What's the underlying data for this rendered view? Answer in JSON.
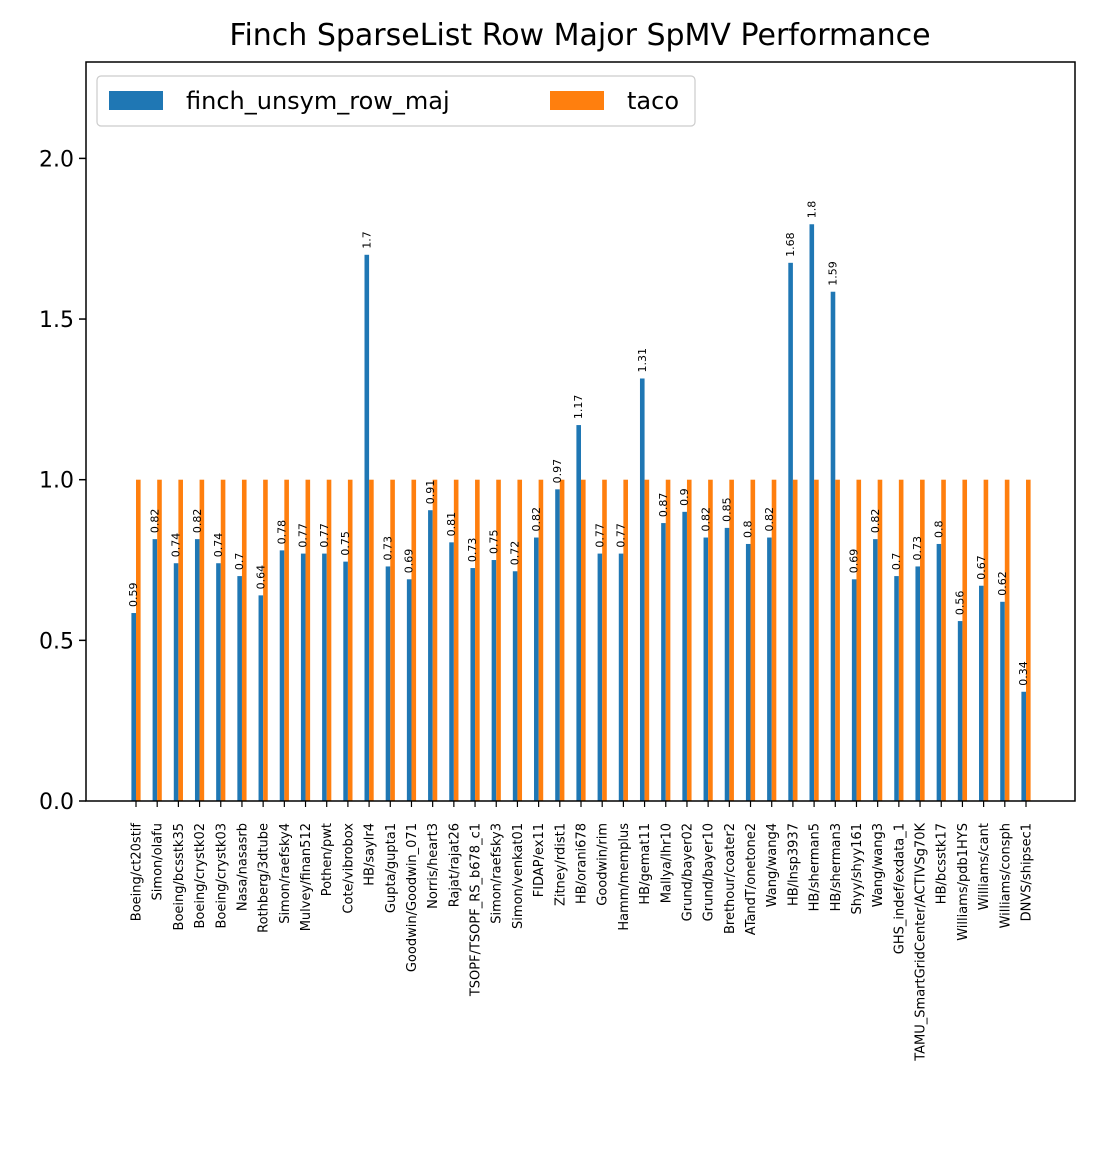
{
  "chart_data": {
    "type": "bar",
    "title": "Finch SparseList Row Major SpMV Performance",
    "xlabel": "",
    "ylabel": "",
    "ylim": [
      0,
      2.3
    ],
    "yticks": [
      0.0,
      0.5,
      1.0,
      1.5,
      2.0
    ],
    "ytick_labels": [
      "0.0",
      "0.5",
      "1.0",
      "1.5",
      "2.0"
    ],
    "grid": false,
    "legend": {
      "position": "top-left",
      "ncol": 2
    },
    "categories": [
      "Boeing/ct20stif",
      "Simon/olafu",
      "Boeing/bcsstk35",
      "Boeing/crystk02",
      "Boeing/crystk03",
      "Nasa/nasasrb",
      "Rothberg/3dtube",
      "Simon/raefsky4",
      "Mulvey/finan512",
      "Pothen/pwt",
      "Cote/vibrobox",
      "HB/saylr4",
      "Gupta/gupta1",
      "Goodwin/Goodwin_071",
      "Norris/heart3",
      "Rajat/rajat26",
      "TSOPF/TSOPF_RS_b678_c1",
      "Simon/raefsky3",
      "Simon/venkat01",
      "FIDAP/ex11",
      "Zitney/rdist1",
      "HB/orani678",
      "Goodwin/rim",
      "Hamm/memplus",
      "HB/gemat11",
      "Mallya/lhr10",
      "Grund/bayer02",
      "Grund/bayer10",
      "Brethour/coater2",
      "ATandT/onetone2",
      "Wang/wang4",
      "HB/lnsp3937",
      "HB/sherman5",
      "HB/sherman3",
      "Shyy/shyy161",
      "Wang/wang3",
      "GHS_indef/exdata_1",
      "TAMU_SmartGridCenter/ACTIVSg70K",
      "HB/bcsstk17",
      "Williams/pdb1HYS",
      "Williams/cant",
      "Williams/consph",
      "DNVS/shipsec1"
    ],
    "series": [
      {
        "name": "finch_unsym_row_maj",
        "color": "#1f77b4",
        "values": [
          0.585,
          0.815,
          0.74,
          0.815,
          0.74,
          0.7,
          0.64,
          0.78,
          0.77,
          0.77,
          0.745,
          1.7,
          0.73,
          0.69,
          0.905,
          0.805,
          0.725,
          0.75,
          0.715,
          0.82,
          0.97,
          1.17,
          0.77,
          0.77,
          1.315,
          0.865,
          0.9,
          0.82,
          0.85,
          0.8,
          0.82,
          1.675,
          1.795,
          1.585,
          0.69,
          0.815,
          0.7,
          0.73,
          0.8,
          0.56,
          0.67,
          0.62,
          0.34
        ],
        "labels": [
          "0.59",
          "0.82",
          "0.74",
          "0.82",
          "0.74",
          "0.7",
          "0.64",
          "0.78",
          "0.77",
          "0.77",
          "0.75",
          "1.7",
          "0.73",
          "0.69",
          "0.91",
          "0.81",
          "0.73",
          "0.75",
          "0.72",
          "0.82",
          "0.97",
          "1.17",
          "0.77",
          "0.77",
          "1.31",
          "0.87",
          "0.9",
          "0.82",
          "0.85",
          "0.8",
          "0.82",
          "1.68",
          "1.8",
          "1.59",
          "0.69",
          "0.82",
          "0.7",
          "0.73",
          "0.8",
          "0.56",
          "0.67",
          "0.62",
          "0.34"
        ]
      },
      {
        "name": "taco",
        "color": "#ff7f0e",
        "values": [
          1,
          1,
          1,
          1,
          1,
          1,
          1,
          1,
          1,
          1,
          1,
          1,
          1,
          1,
          1,
          1,
          1,
          1,
          1,
          1,
          1,
          1,
          1,
          1,
          1,
          1,
          1,
          1,
          1,
          1,
          1,
          1,
          1,
          1,
          1,
          1,
          1,
          1,
          1,
          1,
          1,
          1,
          1
        ]
      }
    ]
  }
}
